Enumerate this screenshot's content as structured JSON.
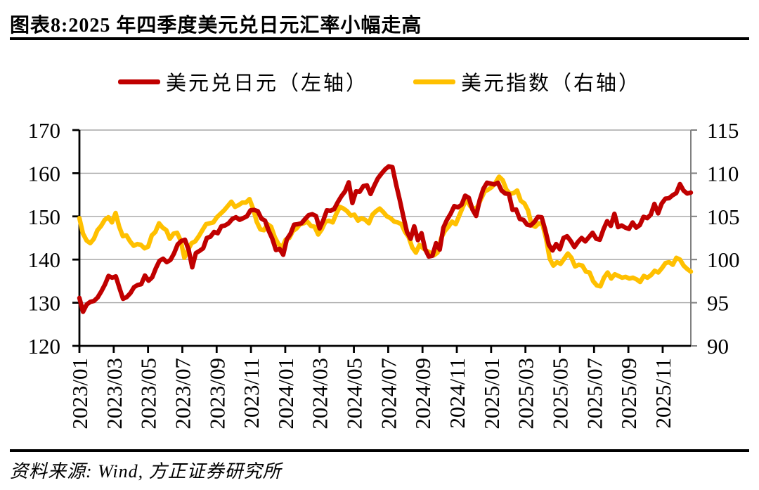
{
  "chart_data": {
    "type": "line",
    "title": "图表8:2025 年四季度美元兑日元汇率小幅走高",
    "x_tick_labels": [
      "2023/01",
      "2023/03",
      "2023/05",
      "2023/07",
      "2023/09",
      "2023/11",
      "2024/01",
      "2024/03",
      "2024/05",
      "2024/07",
      "2024/09",
      "2024/11",
      "2025/01",
      "2025/03",
      "2025/05",
      "2025/07",
      "2025/09",
      "2025/11"
    ],
    "x_range": [
      "2023/01",
      "2025/12"
    ],
    "left_axis": {
      "ticks": [
        170,
        160,
        150,
        140,
        130,
        120
      ],
      "range": [
        120,
        170
      ]
    },
    "right_axis": {
      "ticks": [
        115,
        110,
        105,
        100,
        95,
        90
      ],
      "range": [
        90,
        115
      ]
    },
    "grid": "horizontal",
    "legend_position": "top-center",
    "series": [
      {
        "name": "美元兑日元（左轴）",
        "axis": "left",
        "color": "#C00000",
        "values": [
          131.1,
          127.9,
          129.6,
          130.2,
          130.4,
          131.2,
          132.6,
          134.2,
          136.2,
          135.8,
          136.1,
          133.4,
          130.9,
          131.3,
          132.2,
          133.6,
          134.1,
          134.3,
          136.3,
          135.1,
          135.9,
          138.0,
          139.7,
          140.2,
          139.4,
          139.9,
          141.4,
          143.5,
          144.3,
          144.6,
          142.3,
          138.2,
          141.5,
          142.0,
          142.6,
          145.0,
          145.3,
          146.4,
          146.1,
          147.7,
          147.9,
          148.4,
          149.4,
          149.8,
          149.2,
          149.6,
          150.0,
          151.4,
          151.5,
          151.2,
          149.5,
          149.0,
          146.7,
          144.8,
          142.2,
          142.5,
          141.1,
          144.7,
          146.0,
          148.1,
          148.2,
          148.4,
          149.4,
          150.3,
          150.5,
          150.1,
          147.2,
          149.1,
          151.4,
          151.3,
          151.7,
          153.3,
          154.7,
          155.8,
          157.9,
          153.1,
          155.8,
          155.7,
          157.0,
          157.2,
          155.2,
          157.1,
          158.8,
          159.9,
          160.9,
          161.6,
          161.4,
          157.5,
          153.9,
          150.0,
          146.4,
          144.8,
          147.7,
          144.5,
          146.1,
          142.4,
          140.7,
          140.9,
          143.8,
          142.3,
          147.4,
          149.2,
          150.6,
          152.4,
          152.1,
          152.7,
          154.8,
          154.3,
          151.6,
          150.1,
          153.8,
          156.4,
          157.8,
          157.6,
          157.4,
          157.8,
          156.0,
          155.3,
          155.2,
          151.5,
          151.6,
          149.4,
          149.2,
          148.1,
          147.9,
          148.7,
          149.9,
          149.8,
          146.8,
          143.4,
          142.1,
          143.6,
          142.4,
          145.0,
          145.4,
          144.3,
          142.9,
          144.1,
          145.0,
          144.2,
          145.2,
          146.2,
          144.8,
          144.6,
          147.0,
          148.9,
          147.8,
          150.6,
          147.5,
          147.9,
          147.4,
          147.1,
          148.6,
          147.4,
          148.0,
          149.9,
          149.6,
          150.4,
          152.9,
          150.7,
          153.0,
          154.1,
          154.2,
          154.9,
          155.4,
          157.5,
          156.0,
          155.3,
          155.5
        ]
      },
      {
        "name": "美元指数（右轴）",
        "axis": "right",
        "color": "#FFC000",
        "values": [
          104.8,
          103.0,
          102.2,
          101.9,
          102.4,
          103.4,
          103.9,
          104.6,
          104.9,
          104.3,
          105.4,
          103.8,
          102.7,
          102.8,
          102.1,
          101.6,
          101.8,
          101.7,
          101.3,
          101.5,
          102.8,
          103.2,
          104.2,
          103.7,
          103.4,
          102.4,
          103.0,
          103.1,
          102.2,
          100.2,
          101.1,
          101.9,
          102.1,
          102.7,
          103.4,
          104.1,
          104.2,
          104.3,
          104.9,
          105.3,
          105.7,
          106.2,
          106.7,
          106.1,
          106.3,
          106.6,
          106.6,
          107.0,
          105.9,
          104.4,
          103.5,
          103.4,
          104.1,
          103.8,
          102.6,
          101.8,
          101.4,
          102.3,
          102.5,
          103.3,
          103.6,
          104.1,
          104.2,
          104.4,
          103.9,
          103.8,
          102.9,
          103.5,
          104.4,
          104.5,
          104.3,
          105.3,
          106.1,
          105.9,
          105.6,
          105.1,
          105.2,
          104.5,
          104.8,
          104.6,
          104.2,
          105.2,
          105.6,
          105.9,
          105.5,
          105.0,
          104.8,
          104.4,
          104.3,
          104.1,
          103.2,
          102.6,
          101.4,
          100.8,
          101.7,
          101.3,
          101.0,
          100.8,
          100.5,
          100.8,
          102.5,
          103.3,
          103.8,
          104.4,
          104.1,
          105.1,
          106.1,
          107.0,
          106.2,
          105.8,
          106.1,
          107.0,
          107.9,
          108.1,
          108.4,
          108.9,
          109.6,
          109.2,
          108.1,
          107.6,
          107.7,
          108.0,
          106.8,
          106.5,
          105.7,
          104.0,
          103.8,
          104.2,
          104.1,
          102.4,
          100.1,
          99.3,
          99.7,
          99.5,
          100.1,
          100.7,
          100.2,
          99.2,
          99.4,
          99.3,
          98.6,
          98.5,
          97.5,
          97.0,
          96.9,
          97.9,
          98.5,
          97.8,
          98.3,
          98.1,
          97.9,
          98.0,
          97.8,
          97.9,
          97.7,
          97.4,
          98.1,
          97.9,
          98.2,
          98.7,
          98.5,
          99.0,
          99.6,
          99.7,
          99.4,
          100.2,
          100.0,
          99.3,
          98.9,
          98.6
        ]
      }
    ]
  },
  "footer": {
    "source_text": "资料来源: Wind, 方正证券研究所"
  },
  "colors": {
    "usdjpy_red": "#C00000",
    "dxy_yellow": "#FFC000",
    "gridline": "#A6A6A6",
    "right_spine": "#808080",
    "axis_black": "#000000"
  }
}
